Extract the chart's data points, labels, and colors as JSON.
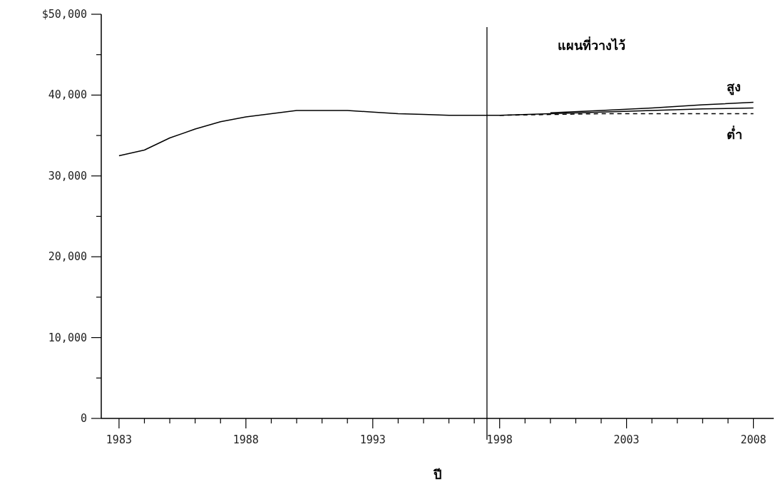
{
  "chart_data": {
    "type": "line",
    "xlabel": "ปี",
    "xlim": [
      1982.3,
      2008.8
    ],
    "ylim": [
      0,
      50000
    ],
    "xticks": [
      1983,
      {
        "value": 1984,
        "label": null
      },
      {
        "value": 1985,
        "label": null
      },
      {
        "value": 1986,
        "label": null
      },
      {
        "value": 1987,
        "label": null
      },
      1988,
      {
        "value": 1989,
        "label": null
      },
      {
        "value": 1990,
        "label": null
      },
      {
        "value": 1991,
        "label": null
      },
      {
        "value": 1992,
        "label": null
      },
      1993,
      {
        "value": 1994,
        "label": null
      },
      {
        "value": 1995,
        "label": null
      },
      {
        "value": 1996,
        "label": null
      },
      {
        "value": 1997,
        "label": null
      },
      1998,
      {
        "value": 1999,
        "label": null
      },
      {
        "value": 2000,
        "label": null
      },
      {
        "value": 2001,
        "label": null
      },
      {
        "value": 2002,
        "label": null
      },
      2003,
      {
        "value": 2004,
        "label": null
      },
      {
        "value": 2005,
        "label": null
      },
      {
        "value": 2006,
        "label": null
      },
      {
        "value": 2007,
        "label": null
      },
      2008
    ],
    "yticks": [
      {
        "value": 0,
        "label": "0"
      },
      {
        "value": 5000,
        "label": null
      },
      {
        "value": 10000,
        "label": "10,000"
      },
      {
        "value": 15000,
        "label": null
      },
      {
        "value": 20000,
        "label": "20,000"
      },
      {
        "value": 25000,
        "label": null
      },
      {
        "value": 30000,
        "label": "30,000"
      },
      {
        "value": 35000,
        "label": null
      },
      {
        "value": 40000,
        "label": "40,000"
      },
      {
        "value": 45000,
        "label": null
      },
      {
        "value": 50000,
        "label": "$50,000"
      }
    ],
    "series": [
      {
        "color": "#000000",
        "x": [
          1983,
          1984,
          1985,
          1986,
          1987,
          1988,
          1989,
          1990,
          1991,
          1992,
          1993,
          1994,
          1995,
          1996,
          1997,
          1998,
          2000,
          2002,
          2004,
          2006,
          2008
        ],
        "values": [
          32500,
          33200,
          34700,
          35800,
          36700,
          37300,
          37700,
          38100,
          38100,
          38100,
          37900,
          37700,
          37600,
          37500,
          37500,
          37500,
          37700,
          37900,
          38100,
          38300,
          38400
        ]
      },
      {
        "name": "สูง",
        "color": "#000000",
        "x": [
          2000,
          2002,
          2004,
          2006,
          2008
        ],
        "values": [
          37800,
          38100,
          38400,
          38800,
          39100
        ]
      },
      {
        "name": "ต่ำ",
        "color": "#000000",
        "line_style": "dashed",
        "x": [
          1998,
          2000,
          2002,
          2004,
          2006,
          2008
        ],
        "values": [
          37500,
          37600,
          37700,
          37700,
          37700,
          37700
        ]
      }
    ],
    "ref_lines": [
      {
        "axis": "x",
        "value": 1997.5,
        "color": "#000000"
      }
    ],
    "annotations": [
      "แผนที่วางไว้"
    ],
    "grid": false,
    "legend": false,
    "marker": "none",
    "line_style": "solid"
  }
}
